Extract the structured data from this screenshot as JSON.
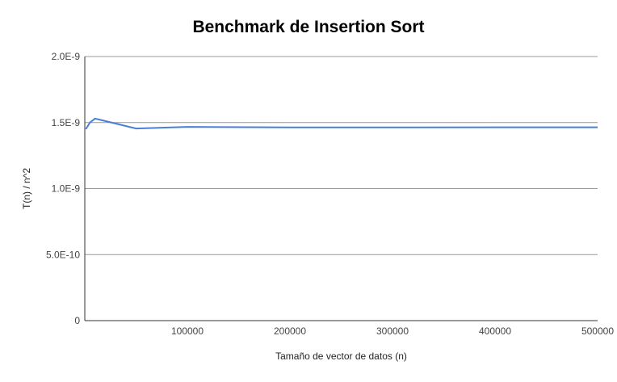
{
  "chart_data": {
    "type": "line",
    "title": "Benchmark de Insertion Sort",
    "xlabel": "Tamaño de vector de datos (n)",
    "ylabel": "T(n) / n^2",
    "xlim": [
      0,
      500000
    ],
    "ylim": [
      0,
      2e-09
    ],
    "grid": true,
    "legend": "none",
    "x_ticks": [
      {
        "value": 100000,
        "label": "100000"
      },
      {
        "value": 200000,
        "label": "200000"
      },
      {
        "value": 300000,
        "label": "300000"
      },
      {
        "value": 400000,
        "label": "400000"
      },
      {
        "value": 500000,
        "label": "500000"
      }
    ],
    "y_ticks": [
      {
        "value": 0,
        "label": "0"
      },
      {
        "value": 5e-10,
        "label": "5.0E-10"
      },
      {
        "value": 1e-09,
        "label": "1.0E-9"
      },
      {
        "value": 1.5e-09,
        "label": "1.5E-9"
      },
      {
        "value": 2e-09,
        "label": "2.0E-9"
      }
    ],
    "series": [
      {
        "color": "#4a7fd8",
        "x": [
          1000,
          5000,
          10000,
          50000,
          100000,
          200000,
          300000,
          400000,
          500000
        ],
        "y": [
          1.45e-09,
          1.5e-09,
          1.53e-09,
          1.455e-09,
          1.467e-09,
          1.463e-09,
          1.463e-09,
          1.464e-09,
          1.464e-09
        ]
      }
    ]
  }
}
